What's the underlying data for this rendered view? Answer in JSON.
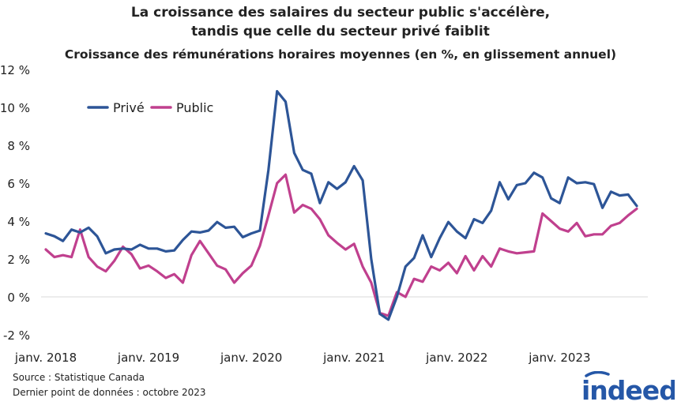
{
  "title_lines": [
    "La croissance des salaires du secteur public s'accélère,",
    "tandis que celle du secteur privé faiblit"
  ],
  "subtitle": "Croissance des rémunérations horaires moyennes (en %, en glissement annuel)",
  "source": "Source : Statistique Canada",
  "last_point": "Dernier point de données : octobre 2023",
  "logo_text": "indeed",
  "colors": {
    "prive": "#2d5597",
    "public": "#c0408e",
    "zero_line": "#d9d9d9",
    "logo": "#2557a7"
  },
  "chart_data": {
    "type": "line",
    "ylim": [
      -2,
      12
    ],
    "yticks": [
      -2,
      0,
      2,
      4,
      6,
      8,
      10,
      12
    ],
    "ytick_labels": [
      "-2 %",
      "0 %",
      "2 %",
      "4 %",
      "6 %",
      "8 %",
      "10 %",
      "12 %"
    ],
    "xtick_labels": [
      "janv. 2018",
      "janv. 2019",
      "janv. 2020",
      "janv. 2021",
      "janv. 2022",
      "janv. 2023"
    ],
    "xtick_index": [
      0,
      12,
      24,
      36,
      48,
      60
    ],
    "legend_position": "top-left",
    "grid": false,
    "series": [
      {
        "name": "Privé",
        "color": "#2d5597",
        "values": [
          3.35,
          3.2,
          2.95,
          3.55,
          3.4,
          3.65,
          3.2,
          2.3,
          2.5,
          2.55,
          2.5,
          2.75,
          2.55,
          2.55,
          2.4,
          2.45,
          3.0,
          3.45,
          3.4,
          3.5,
          3.95,
          3.65,
          3.7,
          3.15,
          3.35,
          3.5,
          6.7,
          10.85,
          10.3,
          7.6,
          6.7,
          6.5,
          4.95,
          6.05,
          5.7,
          6.05,
          6.9,
          6.15,
          2.0,
          -0.9,
          -1.2,
          0.0,
          1.6,
          2.05,
          3.25,
          2.1,
          3.1,
          3.95,
          3.45,
          3.1,
          4.1,
          3.9,
          4.55,
          6.05,
          5.15,
          5.9,
          6.0,
          6.55,
          6.3,
          5.2,
          4.95,
          6.3,
          6.0,
          6.05,
          5.95,
          4.7,
          5.55,
          5.35,
          5.4,
          4.8
        ]
      },
      {
        "name": "Public",
        "color": "#c0408e",
        "values": [
          2.5,
          2.1,
          2.2,
          2.1,
          3.55,
          2.1,
          1.6,
          1.35,
          1.9,
          2.65,
          2.25,
          1.5,
          1.65,
          1.35,
          1.0,
          1.2,
          0.75,
          2.2,
          2.95,
          2.3,
          1.65,
          1.45,
          0.75,
          1.25,
          1.65,
          2.7,
          4.3,
          6.0,
          6.45,
          4.45,
          4.85,
          4.65,
          4.1,
          3.25,
          2.85,
          2.5,
          2.8,
          1.6,
          0.75,
          -0.85,
          -1.0,
          0.25,
          0.0,
          0.95,
          0.8,
          1.6,
          1.4,
          1.8,
          1.25,
          2.15,
          1.4,
          2.15,
          1.6,
          2.55,
          2.4,
          2.3,
          2.35,
          2.4,
          4.4,
          4.0,
          3.6,
          3.45,
          3.9,
          3.2,
          3.3,
          3.3,
          3.75,
          3.9,
          4.3,
          4.65
        ]
      }
    ]
  }
}
